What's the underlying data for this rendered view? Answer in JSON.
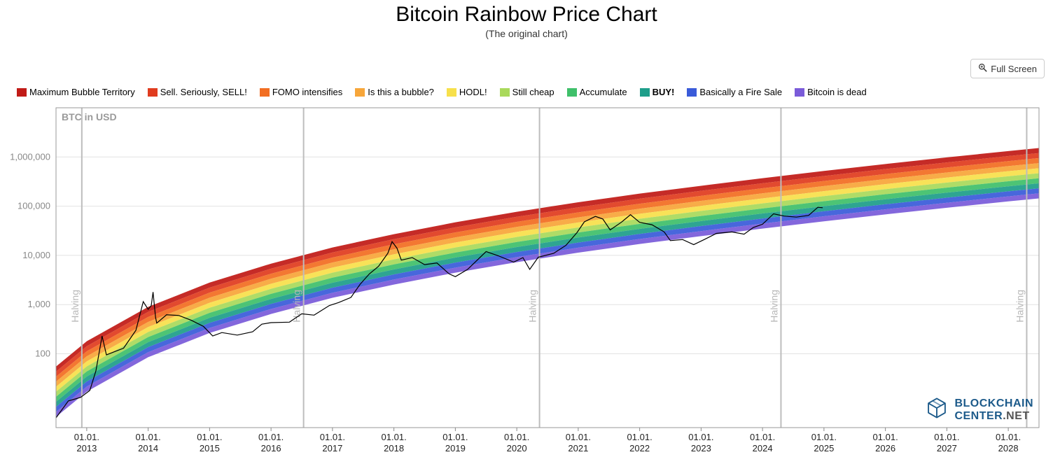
{
  "title": "Bitcoin Rainbow Price Chart",
  "subtitle": "(The original chart)",
  "fullscreen_label": "Full Screen",
  "y_axis_label": "BTC in USD",
  "branding": {
    "name": "BLOCKCHAIN",
    "suffix": "CENTER",
    "tld": ".NET",
    "color": "#1c5a8a"
  },
  "chart": {
    "type": "line-with-bands-log",
    "background_color": "#ffffff",
    "plot_border_color": "#9a9a9a",
    "grid_color": "#e2e2e2",
    "axis_text_color": "#888888",
    "x_axis_text_color": "#222222",
    "price_line_color": "#000000",
    "price_line_width": 1.2,
    "legend": [
      {
        "label": "Maximum Bubble Territory",
        "color": "#c11b17"
      },
      {
        "label": "Sell. Seriously, SELL!",
        "color": "#e03c1f"
      },
      {
        "label": "FOMO intensifies",
        "color": "#f26e22"
      },
      {
        "label": "Is this a bubble?",
        "color": "#f7a63a"
      },
      {
        "label": "HODL!",
        "color": "#f7e04b"
      },
      {
        "label": "Still cheap",
        "color": "#a9d95b"
      },
      {
        "label": "Accumulate",
        "color": "#3fc06a"
      },
      {
        "label": "BUY!",
        "color": "#1e9e8a",
        "bold": true
      },
      {
        "label": "Basically a Fire Sale",
        "color": "#3a5bd9"
      },
      {
        "label": "Bitcoin is dead",
        "color": "#7a5bd9"
      }
    ],
    "x_domain_years": [
      2012.5,
      2028.5
    ],
    "y_domain_log10": [
      0.5,
      7.0
    ],
    "y_ticks": [
      100,
      1000,
      10000,
      100000,
      1000000
    ],
    "y_tick_labels": [
      "100",
      "1,000",
      "10,000",
      "100,000",
      "1,000,000"
    ],
    "x_ticks": [
      2013,
      2014,
      2015,
      2016,
      2017,
      2018,
      2019,
      2020,
      2021,
      2022,
      2023,
      2024,
      2025,
      2026,
      2027,
      2028
    ],
    "x_tick_label_top": "01.01.",
    "halvings": [
      {
        "year": 2012.92,
        "label": "Halving"
      },
      {
        "year": 2016.53,
        "label": "Halving"
      },
      {
        "year": 2020.37,
        "label": "Halving"
      },
      {
        "year": 2024.3,
        "label": "Halving"
      },
      {
        "year": 2028.3,
        "label": "Halving"
      }
    ],
    "band_curve": {
      "comment": "top-of-rainbow (band 0 upper) value at sampled x-years; each subsequent band is factor lower",
      "band_factor": 0.79,
      "num_bands": 10,
      "samples": [
        {
          "year": 2012.5,
          "top": 55
        },
        {
          "year": 2013.0,
          "top": 180
        },
        {
          "year": 2014.0,
          "top": 900
        },
        {
          "year": 2015.0,
          "top": 2800
        },
        {
          "year": 2016.0,
          "top": 6800
        },
        {
          "year": 2017.0,
          "top": 14500
        },
        {
          "year": 2018.0,
          "top": 27000
        },
        {
          "year": 2019.0,
          "top": 47000
        },
        {
          "year": 2020.0,
          "top": 77000
        },
        {
          "year": 2021.0,
          "top": 120000
        },
        {
          "year": 2022.0,
          "top": 180000
        },
        {
          "year": 2023.0,
          "top": 260000
        },
        {
          "year": 2024.0,
          "top": 370000
        },
        {
          "year": 2025.0,
          "top": 520000
        },
        {
          "year": 2026.0,
          "top": 720000
        },
        {
          "year": 2027.0,
          "top": 980000
        },
        {
          "year": 2028.0,
          "top": 1320000
        },
        {
          "year": 2028.5,
          "top": 1520000
        }
      ]
    },
    "price_series": [
      {
        "year": 2012.5,
        "price": 5
      },
      {
        "year": 2012.7,
        "price": 11
      },
      {
        "year": 2012.9,
        "price": 13
      },
      {
        "year": 2013.05,
        "price": 18
      },
      {
        "year": 2013.15,
        "price": 45
      },
      {
        "year": 2013.25,
        "price": 230
      },
      {
        "year": 2013.32,
        "price": 95
      },
      {
        "year": 2013.45,
        "price": 110
      },
      {
        "year": 2013.6,
        "price": 130
      },
      {
        "year": 2013.8,
        "price": 300
      },
      {
        "year": 2013.92,
        "price": 1150
      },
      {
        "year": 2014.0,
        "price": 800
      },
      {
        "year": 2014.05,
        "price": 950
      },
      {
        "year": 2014.08,
        "price": 1800
      },
      {
        "year": 2014.12,
        "price": 550
      },
      {
        "year": 2014.14,
        "price": 420
      },
      {
        "year": 2014.3,
        "price": 620
      },
      {
        "year": 2014.5,
        "price": 600
      },
      {
        "year": 2014.7,
        "price": 480
      },
      {
        "year": 2014.9,
        "price": 360
      },
      {
        "year": 2015.05,
        "price": 230
      },
      {
        "year": 2015.2,
        "price": 270
      },
      {
        "year": 2015.45,
        "price": 240
      },
      {
        "year": 2015.7,
        "price": 280
      },
      {
        "year": 2015.85,
        "price": 400
      },
      {
        "year": 2016.0,
        "price": 430
      },
      {
        "year": 2016.3,
        "price": 440
      },
      {
        "year": 2016.5,
        "price": 650
      },
      {
        "year": 2016.7,
        "price": 610
      },
      {
        "year": 2016.95,
        "price": 960
      },
      {
        "year": 2017.1,
        "price": 1100
      },
      {
        "year": 2017.3,
        "price": 1400
      },
      {
        "year": 2017.45,
        "price": 2600
      },
      {
        "year": 2017.6,
        "price": 4200
      },
      {
        "year": 2017.75,
        "price": 6000
      },
      {
        "year": 2017.9,
        "price": 11000
      },
      {
        "year": 2017.97,
        "price": 19000
      },
      {
        "year": 2018.05,
        "price": 14000
      },
      {
        "year": 2018.12,
        "price": 8000
      },
      {
        "year": 2018.3,
        "price": 9000
      },
      {
        "year": 2018.5,
        "price": 6500
      },
      {
        "year": 2018.7,
        "price": 7000
      },
      {
        "year": 2018.9,
        "price": 4200
      },
      {
        "year": 2019.0,
        "price": 3700
      },
      {
        "year": 2019.2,
        "price": 5200
      },
      {
        "year": 2019.5,
        "price": 12000
      },
      {
        "year": 2019.7,
        "price": 9800
      },
      {
        "year": 2019.95,
        "price": 7300
      },
      {
        "year": 2020.1,
        "price": 9000
      },
      {
        "year": 2020.21,
        "price": 5200
      },
      {
        "year": 2020.35,
        "price": 9200
      },
      {
        "year": 2020.6,
        "price": 11000
      },
      {
        "year": 2020.8,
        "price": 16000
      },
      {
        "year": 2020.98,
        "price": 29000
      },
      {
        "year": 2021.1,
        "price": 48000
      },
      {
        "year": 2021.28,
        "price": 62000
      },
      {
        "year": 2021.4,
        "price": 55000
      },
      {
        "year": 2021.52,
        "price": 33000
      },
      {
        "year": 2021.7,
        "price": 47000
      },
      {
        "year": 2021.85,
        "price": 67000
      },
      {
        "year": 2022.0,
        "price": 47000
      },
      {
        "year": 2022.2,
        "price": 42000
      },
      {
        "year": 2022.4,
        "price": 30000
      },
      {
        "year": 2022.5,
        "price": 20000
      },
      {
        "year": 2022.7,
        "price": 21000
      },
      {
        "year": 2022.88,
        "price": 16500
      },
      {
        "year": 2023.05,
        "price": 21000
      },
      {
        "year": 2023.25,
        "price": 28000
      },
      {
        "year": 2023.5,
        "price": 30000
      },
      {
        "year": 2023.7,
        "price": 27000
      },
      {
        "year": 2023.85,
        "price": 37000
      },
      {
        "year": 2024.0,
        "price": 43000
      },
      {
        "year": 2024.18,
        "price": 70000
      },
      {
        "year": 2024.35,
        "price": 63000
      },
      {
        "year": 2024.55,
        "price": 60000
      },
      {
        "year": 2024.75,
        "price": 65000
      },
      {
        "year": 2024.9,
        "price": 95000
      },
      {
        "year": 2024.98,
        "price": 93000
      }
    ]
  }
}
